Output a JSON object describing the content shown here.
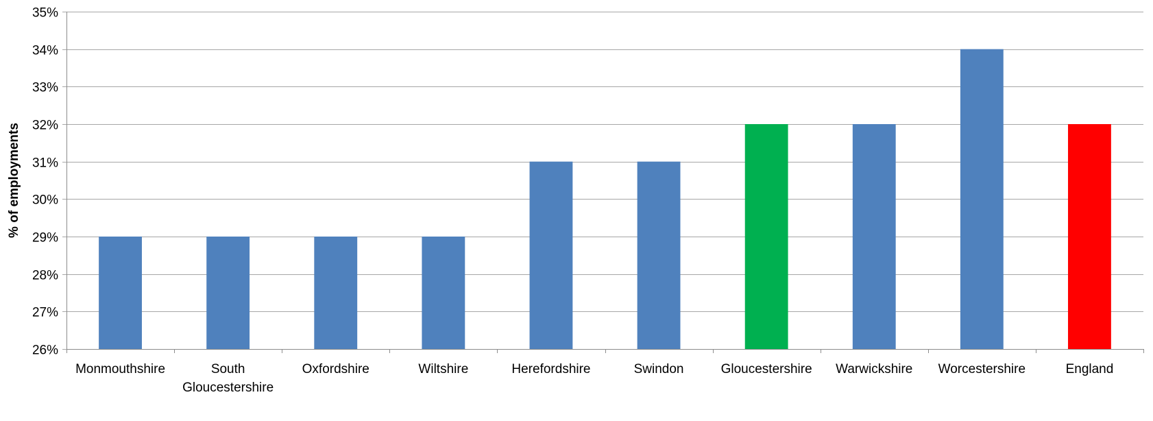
{
  "chart_data": {
    "type": "bar",
    "title": "",
    "xlabel": "",
    "ylabel": "% of employments",
    "ylim": [
      26,
      35
    ],
    "ytick_step": 1,
    "ytick_suffix": "%",
    "grid": true,
    "legend": "none",
    "categories": [
      "Monmouthshire",
      "South Gloucestershire",
      "Oxfordshire",
      "Wiltshire",
      "Herefordshire",
      "Swindon",
      "Gloucestershire",
      "Warwickshire",
      "Worcestershire",
      "England"
    ],
    "category_lines": [
      [
        "Monmouthshire"
      ],
      [
        "South",
        "Gloucestershire"
      ],
      [
        "Oxfordshire"
      ],
      [
        "Wiltshire"
      ],
      [
        "Herefordshire"
      ],
      [
        "Swindon"
      ],
      [
        "Gloucestershire"
      ],
      [
        "Warwickshire"
      ],
      [
        "Worcestershire"
      ],
      [
        "England"
      ]
    ],
    "series": [
      {
        "values": [
          29,
          29,
          29,
          29,
          31,
          31,
          32,
          32,
          34,
          32
        ],
        "colors": [
          "#4f81bd",
          "#4f81bd",
          "#4f81bd",
          "#4f81bd",
          "#4f81bd",
          "#4f81bd",
          "#00b050",
          "#4f81bd",
          "#4f81bd",
          "#ff0000"
        ]
      }
    ]
  }
}
